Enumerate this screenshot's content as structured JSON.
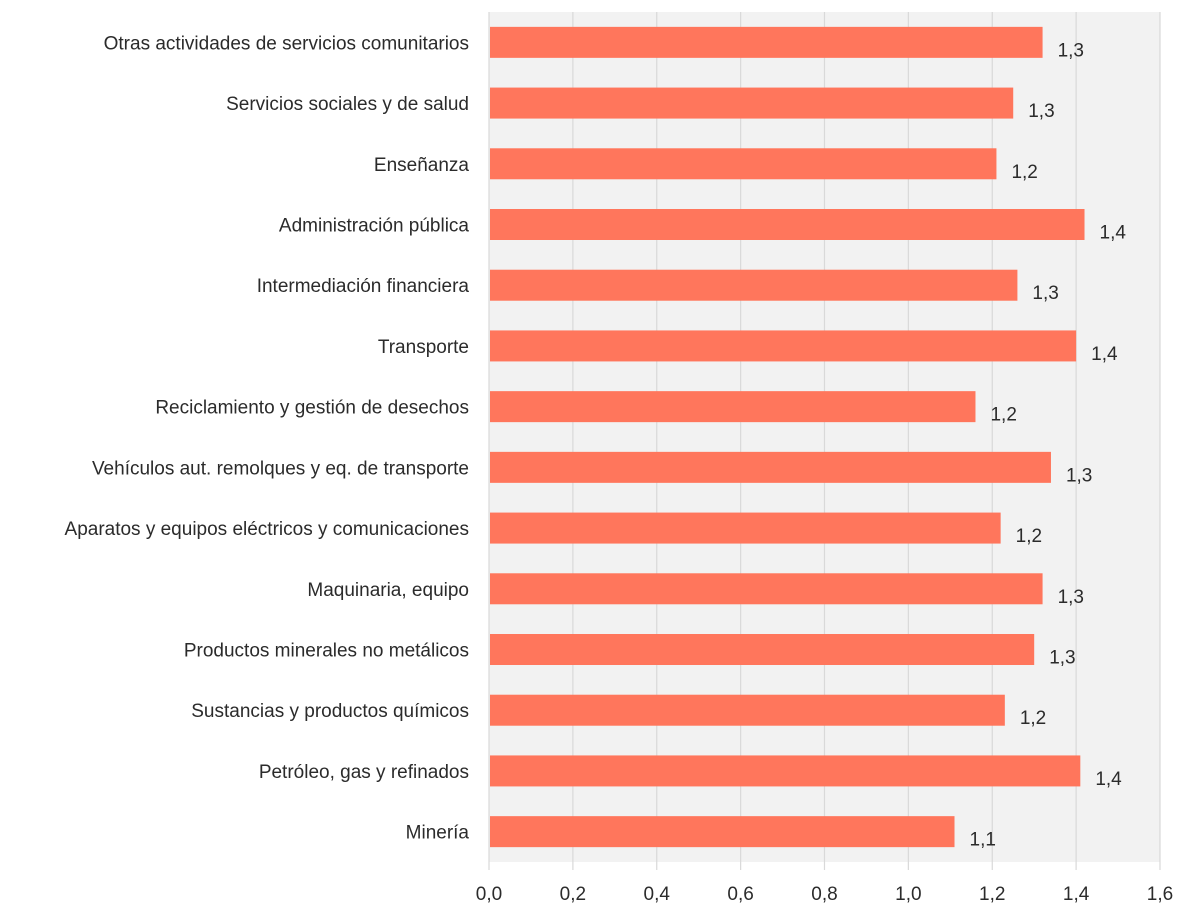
{
  "chart_data": {
    "type": "bar",
    "orientation": "horizontal",
    "categories": [
      "Otras actividades de servicios comunitarios",
      "Servicios sociales y de salud",
      "Enseñanza",
      "Administración pública",
      "Intermediación financiera",
      "Transporte",
      "Reciclamiento y gestión de desechos",
      "Vehículos aut. remolques y eq. de transporte",
      "Aparatos y equipos eléctricos y comunicaciones",
      "Maquinaria, equipo",
      "Productos minerales no metálicos",
      "Sustancias y productos químicos",
      "Petróleo, gas y refinados",
      "Minería"
    ],
    "values": [
      1.32,
      1.25,
      1.21,
      1.42,
      1.26,
      1.4,
      1.16,
      1.34,
      1.22,
      1.32,
      1.3,
      1.23,
      1.41,
      1.11
    ],
    "data_labels": [
      "1,3",
      "1,3",
      "1,2",
      "1,4",
      "1,3",
      "1,4",
      "1,2",
      "1,3",
      "1,2",
      "1,3",
      "1,3",
      "1,2",
      "1,4",
      "1,1"
    ],
    "xlim": [
      0,
      1.6
    ],
    "xticks": [
      0,
      0.2,
      0.4,
      0.6,
      0.8,
      1.0,
      1.2,
      1.4,
      1.6
    ],
    "xtick_labels": [
      "0,0",
      "0,2",
      "0,4",
      "0,6",
      "0,8",
      "1,0",
      "1,2",
      "1,4",
      "1,6"
    ],
    "title": "",
    "xlabel": "",
    "ylabel": "",
    "grid": true,
    "legend": "none",
    "colors": {
      "bar": "#ff765c",
      "plot_background": "#f2f2f2",
      "gridline": "#d9d9d9",
      "text": "#2b2b2b"
    }
  }
}
